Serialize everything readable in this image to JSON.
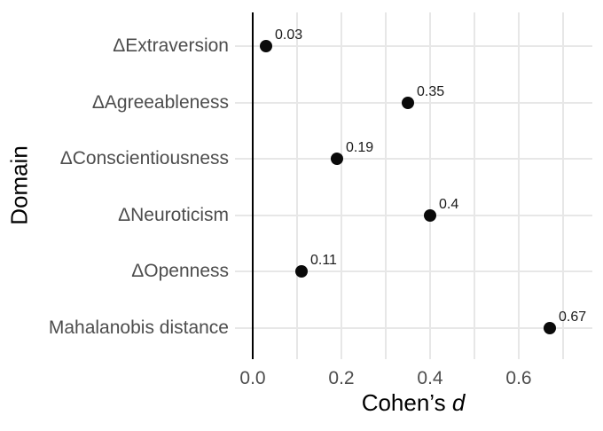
{
  "chart_data": {
    "type": "scatter",
    "title": "",
    "xlabel": "Cohen’s d",
    "ylabel": "Domain",
    "categories": [
      "ΔExtraversion",
      "ΔAgreeableness",
      "ΔConscientiousness",
      "ΔNeuroticism",
      "ΔOpenness",
      "Mahalanobis distance"
    ],
    "values": [
      0.03,
      0.35,
      0.19,
      0.4,
      0.11,
      0.67
    ],
    "value_labels": [
      "0.03",
      "0.35",
      "0.19",
      "0.4",
      "0.11",
      "0.67"
    ],
    "x_ticks": [
      {
        "value": 0.0,
        "label": "0.0"
      },
      {
        "value": 0.2,
        "label": "0.2"
      },
      {
        "value": 0.4,
        "label": "0.4"
      },
      {
        "value": 0.6,
        "label": "0.6"
      }
    ],
    "x_gridlines": [
      0.0,
      0.1,
      0.2,
      0.3,
      0.4,
      0.5,
      0.6,
      0.7
    ],
    "xlim": [
      -0.04,
      0.77
    ],
    "reference_line_x": 0,
    "grid": true,
    "legend": "none",
    "xlabel_parts": {
      "prefix": "Cohen’s ",
      "italic": "d"
    },
    "colors": {
      "point": "#0a0a0a",
      "value_label": "#1a1a1a",
      "axis_text": "#4d4d4d",
      "axis_title": "#000000",
      "gridline": "#e7e7e7",
      "reference_line": "#000000",
      "background": "#ffffff"
    }
  }
}
